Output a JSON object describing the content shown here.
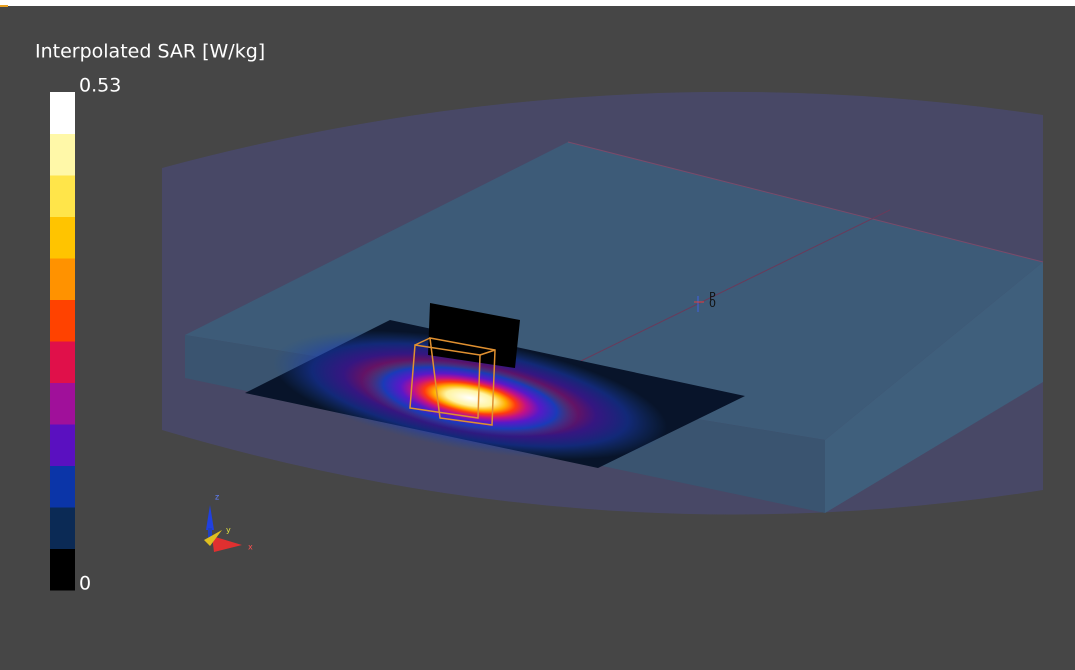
{
  "colorbar": {
    "title": "Interpolated SAR [W/kg]",
    "max_label": "0.53",
    "min_label": "0",
    "colors": [
      "#000000",
      "#0b2a55",
      "#0b35a8",
      "#5a10c0",
      "#a0109a",
      "#e0104a",
      "#ff4200",
      "#ff9200",
      "#ffc400",
      "#ffe54a",
      "#fff8a8",
      "#ffffff"
    ]
  },
  "axes": {
    "x": "x",
    "y": "y",
    "z": "z"
  },
  "probe": {
    "label": "P",
    "sub_label": "0"
  }
}
